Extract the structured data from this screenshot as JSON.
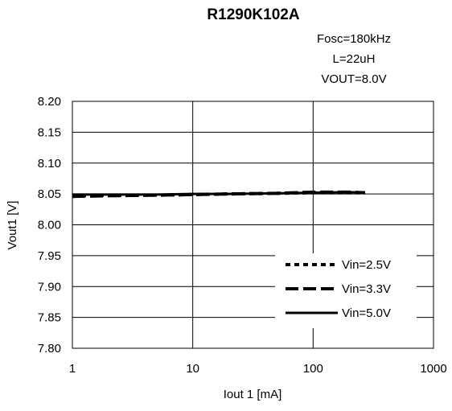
{
  "chart_data": {
    "type": "line",
    "title": "R1290K102A",
    "conditions": [
      "Fosc=180kHz",
      "L=22uH",
      "VOUT=8.0V"
    ],
    "xlabel": "Iout 1 [mA]",
    "ylabel": "Vout1 [V]",
    "x_scale": "log",
    "xlim": [
      1,
      1000
    ],
    "ylim": [
      7.8,
      8.2
    ],
    "x_ticks": [
      "1",
      "10",
      "100",
      "1000"
    ],
    "x_tick_values": [
      1,
      10,
      100,
      1000
    ],
    "y_ticks": [
      "8.20",
      "8.15",
      "8.10",
      "8.05",
      "8.00",
      "7.95",
      "7.90",
      "7.85",
      "7.80"
    ],
    "y_tick_values": [
      8.2,
      8.15,
      8.1,
      8.05,
      8.0,
      7.95,
      7.9,
      7.85,
      7.8
    ],
    "grid": true,
    "legend_position": "bottom-right",
    "series": [
      {
        "name": "Vin=2.5V",
        "style": "dotted",
        "color": "#000000",
        "x": [
          1,
          2,
          5,
          10,
          20,
          50,
          100,
          200,
          270
        ],
        "y": [
          8.047,
          8.048,
          8.048,
          8.049,
          8.05,
          8.051,
          8.052,
          8.052,
          8.052
        ]
      },
      {
        "name": "Vin=3.3V",
        "style": "dashed",
        "color": "#000000",
        "x": [
          1,
          2,
          5,
          10,
          20,
          50,
          100,
          200,
          270
        ],
        "y": [
          8.046,
          8.047,
          8.048,
          8.049,
          8.05,
          8.051,
          8.053,
          8.053,
          8.052
        ]
      },
      {
        "name": "Vin=5.0V",
        "style": "solid",
        "color": "#000000",
        "x": [
          1,
          2,
          5,
          10,
          20,
          50,
          100,
          200,
          270
        ],
        "y": [
          8.049,
          8.049,
          8.049,
          8.05,
          8.05,
          8.051,
          8.052,
          8.053,
          8.052
        ]
      }
    ]
  }
}
